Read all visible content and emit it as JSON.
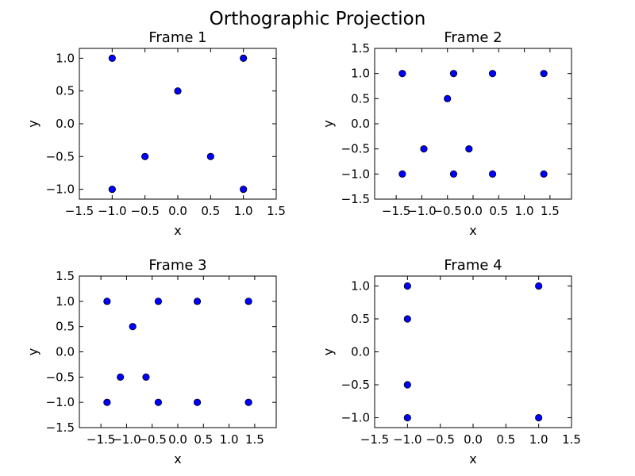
{
  "figure": {
    "title": "Orthographic Projection"
  },
  "chart_data": [
    {
      "type": "scatter",
      "title": "Frame 1",
      "xlabel": "x",
      "ylabel": "y",
      "xlim": [
        -1.5,
        1.5
      ],
      "ylim": [
        -1.15,
        1.15
      ],
      "xticks": [
        -1.5,
        -1.0,
        -0.5,
        0.0,
        0.5,
        1.0,
        1.5
      ],
      "yticks": [
        -1.0,
        -0.5,
        0.0,
        0.5,
        1.0
      ],
      "xtick_labels": [
        "−1.5",
        "−1.0",
        "−0.5",
        "0.0",
        "0.5",
        "1.0",
        "1.5"
      ],
      "ytick_labels": [
        "−1.0",
        "−0.5",
        "0.0",
        "0.5",
        "1.0"
      ],
      "series": [
        {
          "color": "#0000ff",
          "points": [
            [
              -1,
              1
            ],
            [
              1,
              1
            ],
            [
              0,
              0.5
            ],
            [
              -0.5,
              -0.5
            ],
            [
              0.5,
              -0.5
            ],
            [
              -1,
              -1
            ],
            [
              1,
              -1
            ]
          ]
        }
      ]
    },
    {
      "type": "scatter",
      "title": "Frame 2",
      "xlabel": "x",
      "ylabel": "y",
      "xlim": [
        -1.92,
        1.92
      ],
      "ylim": [
        -1.5,
        1.5
      ],
      "xticks": [
        -1.5,
        -1.0,
        -0.5,
        0.0,
        0.5,
        1.0,
        1.5
      ],
      "yticks": [
        -1.5,
        -1.0,
        -0.5,
        0.0,
        0.5,
        1.0,
        1.5
      ],
      "xtick_labels": [
        "−1.5",
        "−1.0",
        "−0.5",
        "0.0",
        "0.5",
        "1.0",
        "1.5"
      ],
      "ytick_labels": [
        "−1.5",
        "−1.0",
        "−0.5",
        "0.0",
        "0.5",
        "1.0",
        "1.5"
      ],
      "series": [
        {
          "color": "#0000ff",
          "points": [
            [
              -1.38,
              1
            ],
            [
              -0.38,
              1
            ],
            [
              0.38,
              1
            ],
            [
              1.38,
              1
            ],
            [
              -0.5,
              0.5
            ],
            [
              -0.96,
              -0.5
            ],
            [
              -0.08,
              -0.5
            ],
            [
              -1.38,
              -1
            ],
            [
              -0.38,
              -1
            ],
            [
              0.38,
              -1
            ],
            [
              1.38,
              -1
            ]
          ]
        }
      ]
    },
    {
      "type": "scatter",
      "title": "Frame 3",
      "xlabel": "x",
      "ylabel": "y",
      "xlim": [
        -1.92,
        1.92
      ],
      "ylim": [
        -1.5,
        1.5
      ],
      "xticks": [
        -1.5,
        -1.0,
        -0.5,
        0.0,
        0.5,
        1.0,
        1.5
      ],
      "yticks": [
        -1.5,
        -1.0,
        -0.5,
        0.0,
        0.5,
        1.0,
        1.5
      ],
      "xtick_labels": [
        "−1.5",
        "−1.0",
        "−0.5",
        "0.0",
        "0.5",
        "1.0",
        "1.5"
      ],
      "ytick_labels": [
        "−1.5",
        "−1.0",
        "−0.5",
        "0.0",
        "0.5",
        "1.0",
        "1.5"
      ],
      "series": [
        {
          "color": "#0000ff",
          "points": [
            [
              -1.38,
              1
            ],
            [
              -0.38,
              1
            ],
            [
              0.38,
              1
            ],
            [
              1.38,
              1
            ],
            [
              -0.88,
              0.5
            ],
            [
              -1.12,
              -0.5
            ],
            [
              -0.62,
              -0.5
            ],
            [
              -1.38,
              -1
            ],
            [
              -0.38,
              -1
            ],
            [
              0.38,
              -1
            ],
            [
              1.38,
              -1
            ]
          ]
        }
      ]
    },
    {
      "type": "scatter",
      "title": "Frame 4",
      "xlabel": "x",
      "ylabel": "y",
      "xlim": [
        -1.5,
        1.5
      ],
      "ylim": [
        -1.15,
        1.15
      ],
      "xticks": [
        -1.5,
        -1.0,
        -0.5,
        0.0,
        0.5,
        1.0,
        1.5
      ],
      "yticks": [
        -1.0,
        -0.5,
        0.0,
        0.5,
        1.0
      ],
      "xtick_labels": [
        "−1.5",
        "−1.0",
        "−0.5",
        "0.0",
        "0.5",
        "1.0",
        "1.5"
      ],
      "ytick_labels": [
        "−1.0",
        "−0.5",
        "0.0",
        "0.5",
        "1.0"
      ],
      "series": [
        {
          "color": "#0000ff",
          "points": [
            [
              -1,
              1
            ],
            [
              1,
              1
            ],
            [
              -1,
              0.5
            ],
            [
              -1,
              -0.5
            ],
            [
              -1,
              -1
            ],
            [
              1,
              -1
            ]
          ]
        }
      ]
    }
  ]
}
